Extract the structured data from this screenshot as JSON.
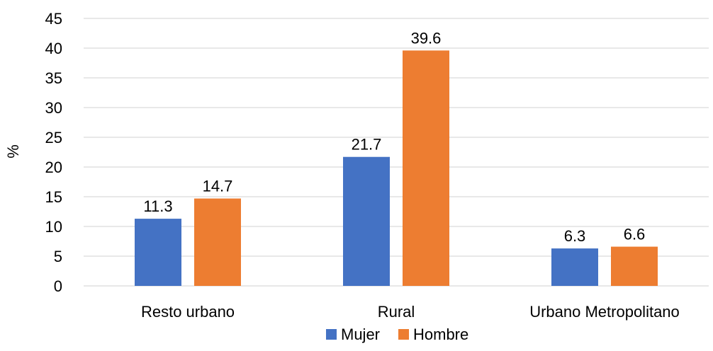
{
  "chart_data": {
    "type": "bar",
    "title": "",
    "xlabel": "",
    "ylabel": "%",
    "ylim": [
      0,
      45
    ],
    "yticks": [
      0,
      5,
      10,
      15,
      20,
      25,
      30,
      35,
      40,
      45
    ],
    "grid": true,
    "legend_position": "bottom",
    "categories": [
      "Resto urbano",
      "Rural",
      "Urbano Metropolitano"
    ],
    "series": [
      {
        "name": "Mujer",
        "color": "#4472C4",
        "values": [
          11.3,
          21.7,
          6.3
        ]
      },
      {
        "name": "Hombre",
        "color": "#ED7D31",
        "values": [
          14.7,
          39.6,
          6.6
        ]
      }
    ]
  }
}
